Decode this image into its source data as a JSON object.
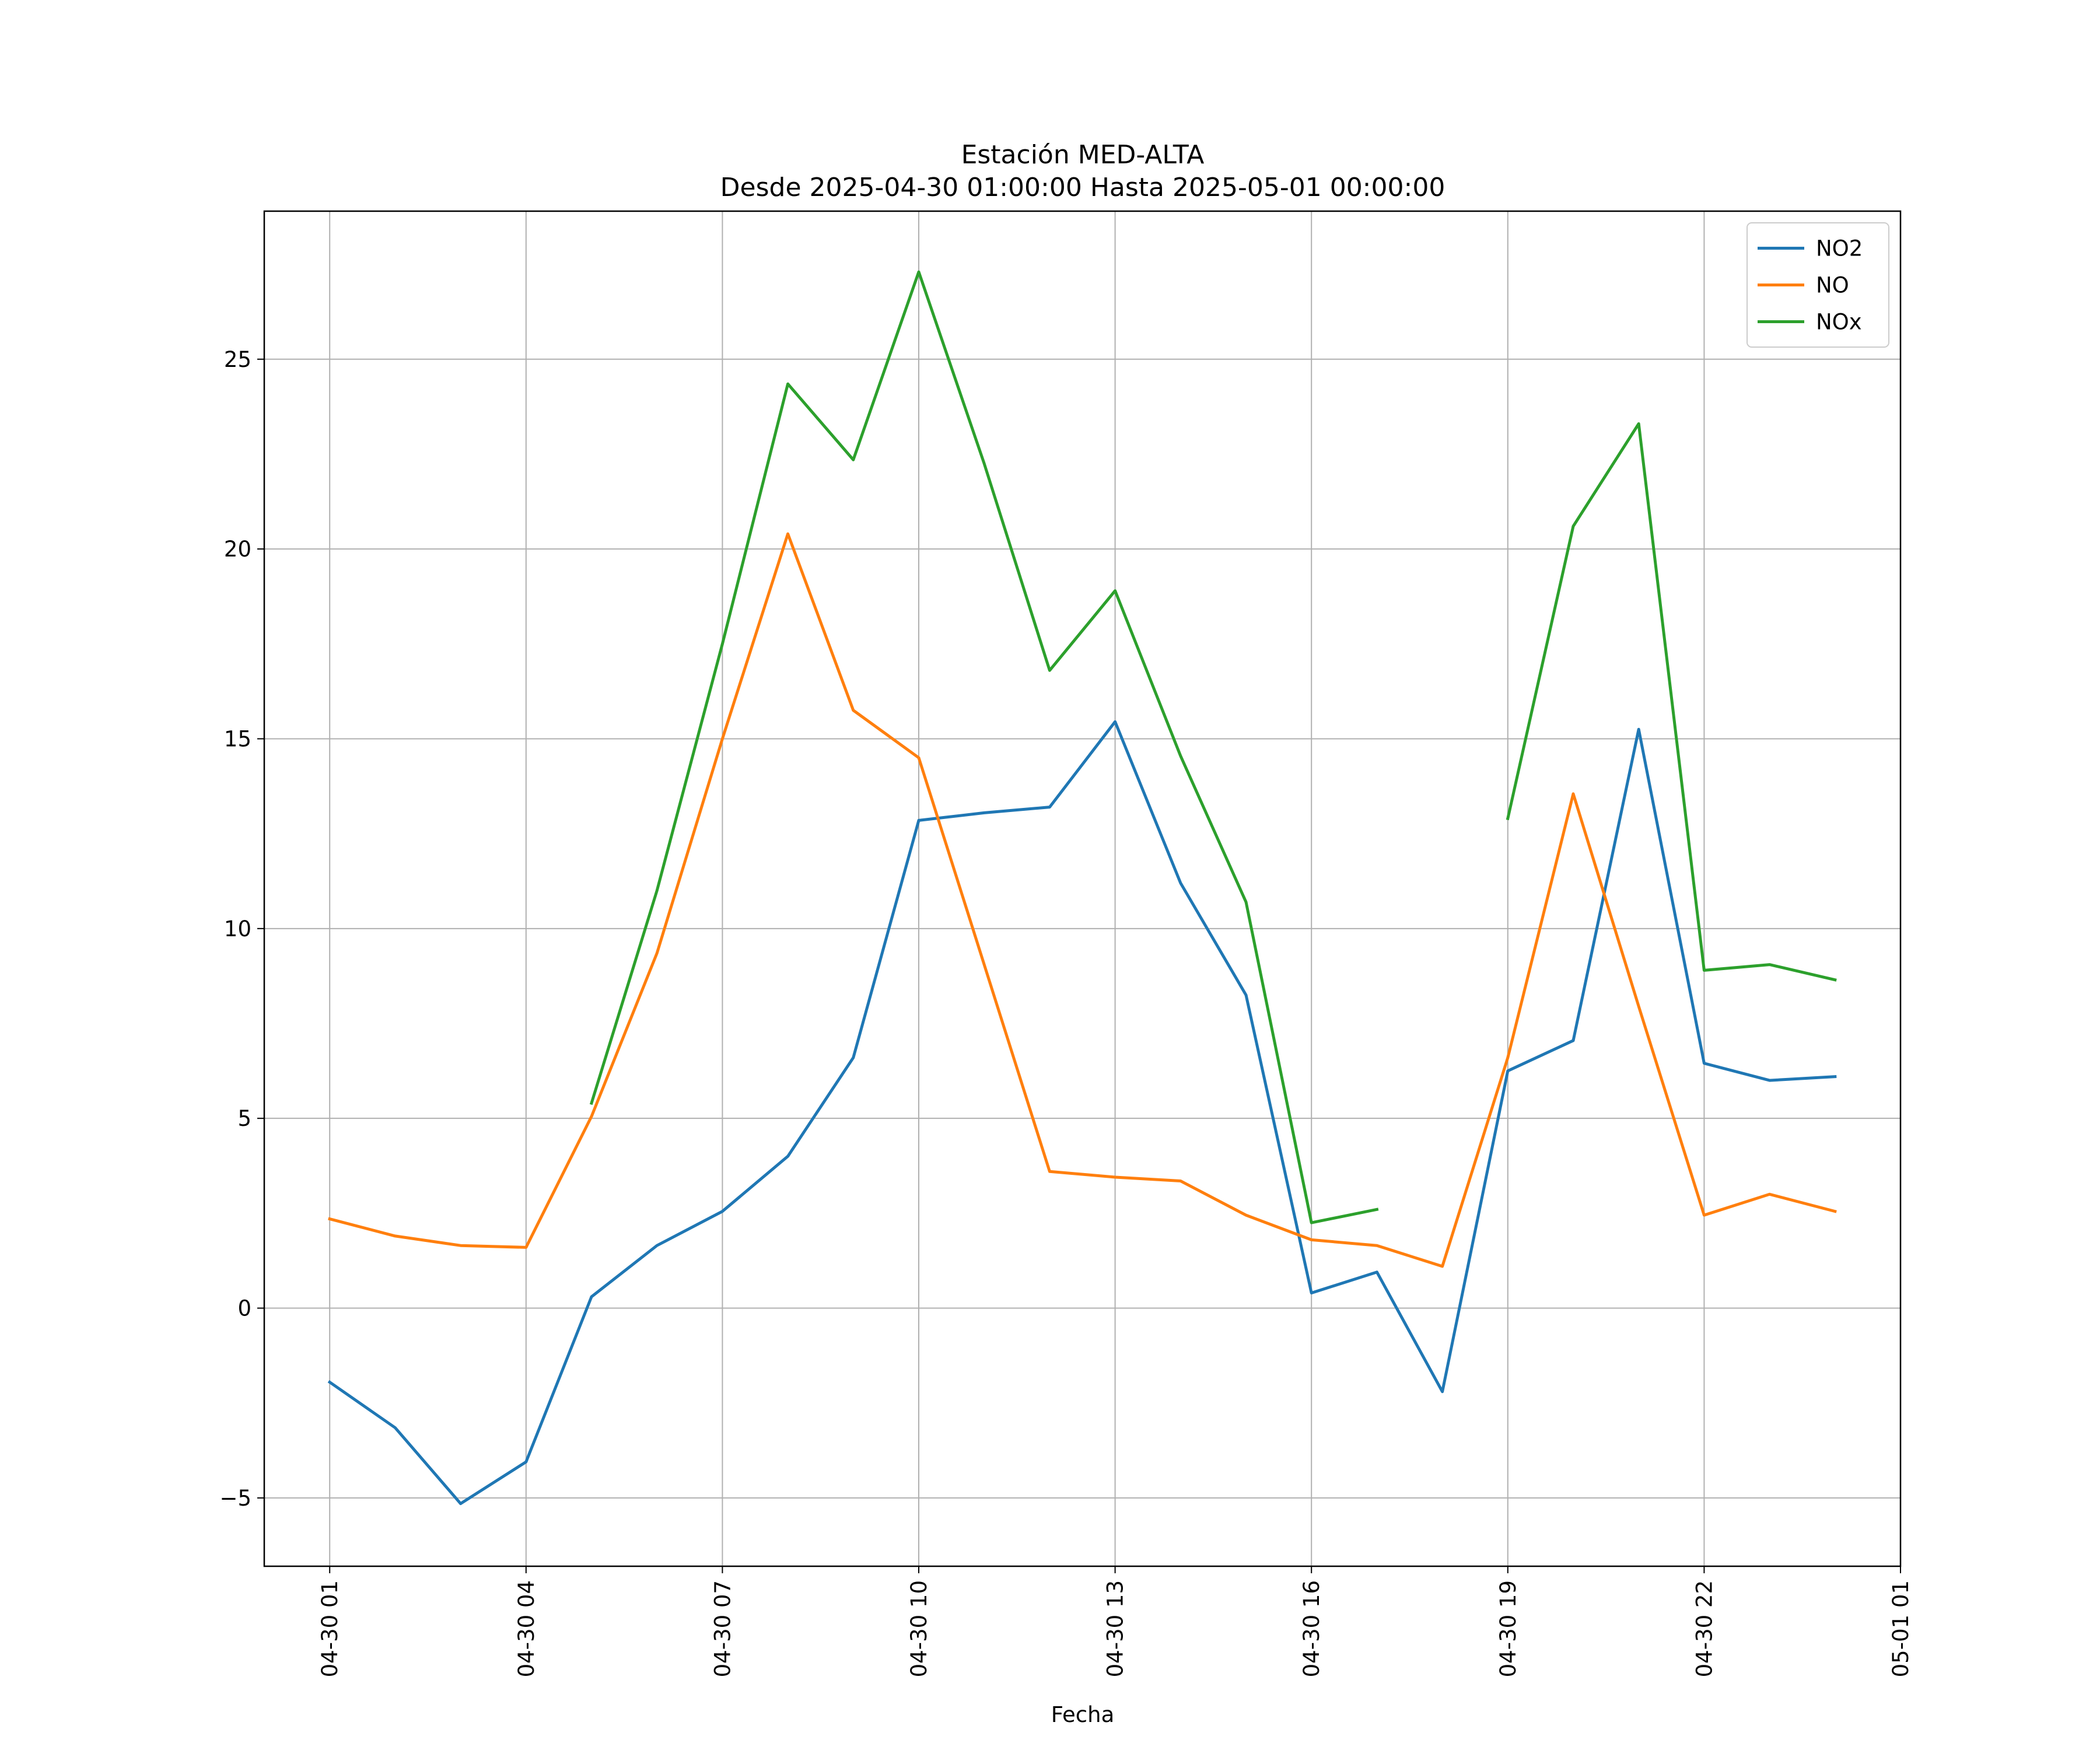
{
  "chart_data": {
    "type": "line",
    "title": "Estación MED-ALTA",
    "subtitle": "Desde 2025-04-30 01:00:00 Hasta 2025-05-01 00:00:00",
    "xlabel": "Fecha",
    "ylabel": "",
    "x": [
      "04-30 01",
      "04-30 02",
      "04-30 03",
      "04-30 04",
      "04-30 05",
      "04-30 06",
      "04-30 07",
      "04-30 08",
      "04-30 09",
      "04-30 10",
      "04-30 11",
      "04-30 12",
      "04-30 13",
      "04-30 14",
      "04-30 15",
      "04-30 16",
      "04-30 17",
      "04-30 18",
      "04-30 19",
      "04-30 20",
      "04-30 21",
      "04-30 22",
      "04-30 23",
      "05-01 00"
    ],
    "xlim": [
      "04-30 00",
      "05-01 01"
    ],
    "x_ticks": [
      "04-30 01",
      "04-30 04",
      "04-30 07",
      "04-30 10",
      "04-30 13",
      "04-30 16",
      "04-30 19",
      "04-30 22",
      "05-01 01"
    ],
    "ylim": [
      -6.8,
      28.9
    ],
    "y_ticks": [
      {
        "value": -5,
        "label": "−5"
      },
      {
        "value": 0,
        "label": "0"
      },
      {
        "value": 5,
        "label": "5"
      },
      {
        "value": 10,
        "label": "10"
      },
      {
        "value": 15,
        "label": "15"
      },
      {
        "value": 20,
        "label": "20"
      },
      {
        "value": 25,
        "label": "25"
      }
    ],
    "grid": true,
    "legend_position": "top-right",
    "series": [
      {
        "name": "NO2",
        "color": "#1f77b4",
        "values": [
          -1.95,
          -3.15,
          -5.15,
          -4.05,
          0.3,
          1.65,
          2.55,
          4.0,
          6.6,
          12.85,
          13.05,
          13.2,
          15.45,
          11.2,
          8.25,
          0.4,
          0.95,
          -2.2,
          6.25,
          7.05,
          15.25,
          6.45,
          6.0,
          6.1
        ]
      },
      {
        "name": "NO",
        "color": "#ff7f0e",
        "values": [
          2.35,
          1.9,
          1.65,
          1.6,
          5.05,
          9.35,
          15.0,
          20.4,
          15.75,
          14.5,
          9.05,
          3.6,
          3.45,
          3.35,
          2.45,
          1.8,
          1.65,
          1.1,
          6.6,
          13.55,
          7.95,
          2.45,
          3.0,
          2.55
        ]
      },
      {
        "name": "NOx",
        "color": "#2ca02c",
        "values": [
          null,
          null,
          null,
          null,
          5.4,
          11.0,
          17.5,
          24.35,
          22.35,
          27.3,
          22.25,
          16.8,
          18.9,
          14.55,
          10.7,
          2.25,
          2.6,
          null,
          12.9,
          20.6,
          23.3,
          8.9,
          9.05,
          8.65
        ]
      }
    ]
  }
}
